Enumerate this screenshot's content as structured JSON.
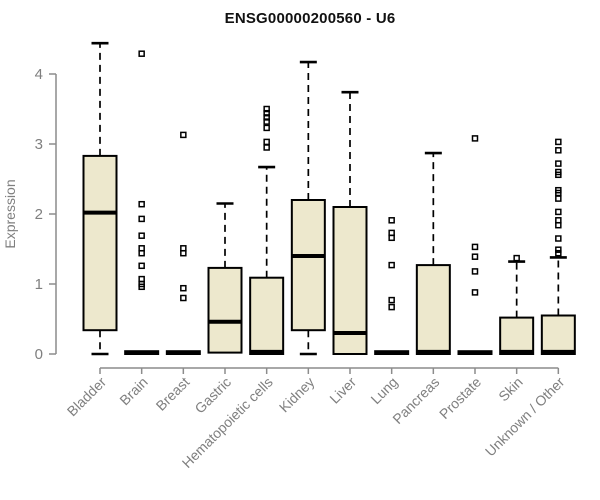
{
  "chart_data": {
    "type": "box",
    "title": "ENSG00000200560 - U6",
    "xlabel": "",
    "ylabel": "Expression",
    "ylim": [
      0,
      4.6
    ],
    "yticks": [
      "0",
      "1",
      "2",
      "3",
      "4"
    ],
    "grid": false,
    "legend": "none",
    "categories": [
      "Bladder",
      "Brain",
      "Breast",
      "Gastric",
      "Hematopoietic cells",
      "Kidney",
      "Liver",
      "Lung",
      "Pancreas",
      "Prostate",
      "Skin",
      "Unknown / Other"
    ],
    "boxes": [
      {
        "category": "Bladder",
        "low": 0,
        "q1": 0.34,
        "median": 2.02,
        "q3": 2.83,
        "high": 4.44,
        "outliers": []
      },
      {
        "category": "Brain",
        "low": 0,
        "q1": 0,
        "median": 0.02,
        "q3": 0.04,
        "high": 0.04,
        "outliers": [
          4.29,
          2.14,
          1.93,
          1.69,
          1.51,
          1.44,
          1.26,
          1.07,
          1.0,
          0.96
        ]
      },
      {
        "category": "Breast",
        "low": 0,
        "q1": 0,
        "median": 0.02,
        "q3": 0.04,
        "high": 0.04,
        "outliers": [
          3.13,
          1.51,
          1.44,
          0.94,
          0.8
        ]
      },
      {
        "category": "Gastric",
        "low": 0.02,
        "q1": 0.02,
        "median": 0.46,
        "q3": 1.23,
        "high": 2.15,
        "outliers": []
      },
      {
        "category": "Hematopoietic cells",
        "low": 0,
        "q1": 0,
        "median": 0.03,
        "q3": 1.09,
        "high": 2.67,
        "outliers": [
          3.5,
          3.44,
          3.38,
          3.32,
          3.23,
          3.03,
          2.95
        ]
      },
      {
        "category": "Kidney",
        "low": 0,
        "q1": 0.34,
        "median": 1.4,
        "q3": 2.2,
        "high": 4.17,
        "outliers": []
      },
      {
        "category": "Liver",
        "low": 0,
        "q1": 0,
        "median": 0.3,
        "q3": 2.1,
        "high": 3.74,
        "outliers": []
      },
      {
        "category": "Lung",
        "low": 0,
        "q1": 0,
        "median": 0.02,
        "q3": 0.04,
        "high": 0.04,
        "outliers": [
          1.91,
          1.73,
          1.66,
          1.27,
          0.77,
          0.67
        ]
      },
      {
        "category": "Pancreas",
        "low": 0,
        "q1": 0,
        "median": 0.03,
        "q3": 1.27,
        "high": 2.87,
        "outliers": []
      },
      {
        "category": "Prostate",
        "low": 0,
        "q1": 0,
        "median": 0.02,
        "q3": 0.04,
        "high": 0.04,
        "outliers": [
          3.08,
          1.53,
          1.39,
          1.18,
          0.88
        ]
      },
      {
        "category": "Skin",
        "low": 0,
        "q1": 0,
        "median": 0.03,
        "q3": 0.52,
        "high": 1.32,
        "outliers": [
          1.37
        ]
      },
      {
        "category": "Unknown / Other",
        "low": 0,
        "q1": 0,
        "median": 0.03,
        "q3": 0.55,
        "high": 1.38,
        "outliers": [
          3.03,
          2.91,
          2.72,
          2.6,
          2.56,
          2.34,
          2.3,
          2.22,
          2.03,
          1.91,
          1.84,
          1.65,
          1.49,
          1.44
        ]
      }
    ],
    "colors": {
      "box_fill": "#EDE8CD",
      "box_border": "#000000",
      "median": "#000000",
      "whisker": "#000000",
      "outlier": "#000000",
      "axis_line": "#8c8c8c",
      "axis_text": "#7f7f7f",
      "title_text": "#111111",
      "background": "#ffffff"
    }
  }
}
